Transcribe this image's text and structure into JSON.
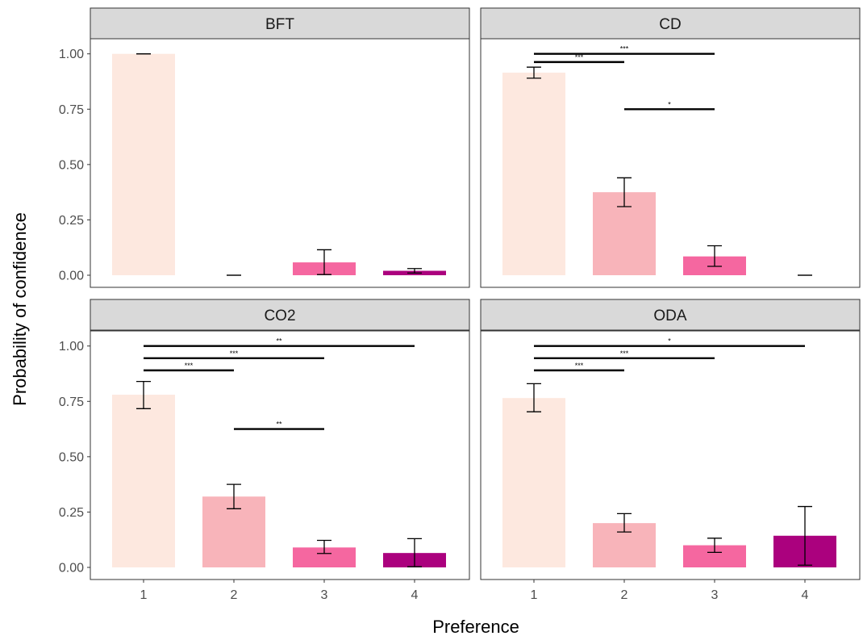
{
  "chart_data": {
    "type": "bar",
    "xlabel": "Preference",
    "ylabel": "Probability of confidence",
    "categories": [
      "1",
      "2",
      "3",
      "4"
    ],
    "ylim": [
      0,
      1.05
    ],
    "yticks": [
      "0.00",
      "0.25",
      "0.50",
      "0.75",
      "1.00"
    ],
    "colors": [
      "#fde8df",
      "#f8b4ba",
      "#f567a0",
      "#ab017e"
    ],
    "grid": false,
    "panels": [
      {
        "label": "BFT",
        "values": [
          1.0,
          0.0,
          0.058,
          0.02
        ],
        "err_low": [
          1.0,
          0.0,
          0.003,
          0.01
        ],
        "err_high": [
          1.0,
          0.0,
          0.115,
          0.03
        ],
        "brackets": [],
        "show_x_ticks": false,
        "show_y_ticks": true
      },
      {
        "label": "CD",
        "values": [
          0.915,
          0.375,
          0.085,
          0.0
        ],
        "err_low": [
          0.89,
          0.31,
          0.04,
          0.0
        ],
        "err_high": [
          0.94,
          0.44,
          0.133,
          0.0
        ],
        "brackets": [
          {
            "from": 1,
            "to": 3,
            "y": 1.0,
            "label": "***"
          },
          {
            "from": 1,
            "to": 2,
            "y": 0.963,
            "label": "***"
          },
          {
            "from": 2,
            "to": 3,
            "y": 0.75,
            "label": "*"
          }
        ],
        "show_x_ticks": false,
        "show_y_ticks": false
      },
      {
        "label": "CO2",
        "values": [
          0.78,
          0.32,
          0.09,
          0.065
        ],
        "err_low": [
          0.717,
          0.265,
          0.063,
          0.003
        ],
        "err_high": [
          0.84,
          0.375,
          0.122,
          0.13
        ],
        "brackets": [
          {
            "from": 1,
            "to": 4,
            "y": 1.0,
            "label": "**"
          },
          {
            "from": 1,
            "to": 3,
            "y": 0.945,
            "label": "***"
          },
          {
            "from": 1,
            "to": 2,
            "y": 0.89,
            "label": "***"
          },
          {
            "from": 2,
            "to": 3,
            "y": 0.625,
            "label": "**"
          }
        ],
        "show_x_ticks": true,
        "show_y_ticks": true
      },
      {
        "label": "ODA",
        "values": [
          0.765,
          0.2,
          0.1,
          0.143
        ],
        "err_low": [
          0.703,
          0.16,
          0.068,
          0.01
        ],
        "err_high": [
          0.83,
          0.243,
          0.132,
          0.275
        ],
        "brackets": [
          {
            "from": 1,
            "to": 4,
            "y": 1.0,
            "label": "*"
          },
          {
            "from": 1,
            "to": 3,
            "y": 0.945,
            "label": "***"
          },
          {
            "from": 1,
            "to": 2,
            "y": 0.89,
            "label": "***"
          }
        ],
        "show_x_ticks": true,
        "show_y_ticks": false
      }
    ]
  }
}
